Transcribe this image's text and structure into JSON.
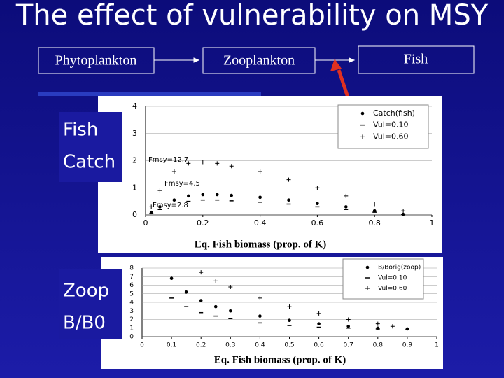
{
  "title": "The effect of vulnerability on MSY",
  "food_web": {
    "nodes": [
      "Phytoplankton",
      "Zooplankton",
      "Fish"
    ]
  },
  "side_labels": [
    [
      "Fish",
      "Catch"
    ],
    [
      "Zoop",
      "B/B0"
    ]
  ],
  "chart_data": [
    {
      "type": "scatter",
      "x_label": "Eq. Fish biomass (prop. of K)",
      "xlim": [
        0,
        1
      ],
      "ylim": [
        0,
        4
      ],
      "xticks": [
        0,
        0.2,
        0.4,
        0.6,
        0.8,
        1
      ],
      "yticks": [
        0,
        1,
        2,
        3,
        4
      ],
      "annotations": [
        "Fmsy=12.7",
        "Fmsy=4.5",
        "Fmsy=2.8"
      ],
      "series": [
        {
          "name": "Catch(fish)",
          "marker": "dot",
          "color": "#000000",
          "x": [
            0.02,
            0.05,
            0.1,
            0.15,
            0.2,
            0.25,
            0.3,
            0.4,
            0.5,
            0.6,
            0.7,
            0.8,
            0.9
          ],
          "values": [
            0.1,
            0.3,
            0.55,
            0.7,
            0.75,
            0.75,
            0.72,
            0.65,
            0.55,
            0.42,
            0.3,
            0.15,
            0.02
          ]
        },
        {
          "name": "Vul=0.10",
          "marker": "dash",
          "color": "#000000",
          "x": [
            0.02,
            0.05,
            0.1,
            0.15,
            0.2,
            0.25,
            0.3,
            0.4,
            0.5,
            0.6,
            0.7,
            0.8,
            0.9
          ],
          "values": [
            0.05,
            0.2,
            0.4,
            0.5,
            0.55,
            0.55,
            0.52,
            0.47,
            0.4,
            0.3,
            0.2,
            0.1,
            0.02
          ]
        },
        {
          "name": "Vul=0.60",
          "marker": "plus",
          "color": "#000000",
          "x": [
            0.02,
            0.05,
            0.1,
            0.15,
            0.2,
            0.25,
            0.3,
            0.4,
            0.5,
            0.6,
            0.7,
            0.8,
            0.9
          ],
          "values": [
            0.3,
            0.9,
            1.6,
            1.9,
            1.95,
            1.9,
            1.8,
            1.6,
            1.3,
            1.0,
            0.7,
            0.4,
            0.15
          ]
        }
      ]
    },
    {
      "type": "scatter",
      "x_label": "Eq. Fish biomass (prop. of K)",
      "xlim": [
        0,
        1
      ],
      "ylim": [
        0,
        8
      ],
      "xticks": [
        0,
        0.1,
        0.2,
        0.3,
        0.4,
        0.5,
        0.6,
        0.7,
        0.8,
        0.9,
        1
      ],
      "yticks": [
        0,
        1,
        2,
        3,
        4,
        5,
        6,
        7,
        8
      ],
      "series": [
        {
          "name": "B/Borig(zoop)",
          "marker": "dot",
          "color": "#000000",
          "x": [
            0.1,
            0.15,
            0.2,
            0.25,
            0.3,
            0.4,
            0.5,
            0.6,
            0.7,
            0.8,
            0.9
          ],
          "values": [
            6.8,
            5.2,
            4.2,
            3.5,
            3,
            2.4,
            1.9,
            1.5,
            1.2,
            1,
            0.9
          ]
        },
        {
          "name": "Vul=0.10",
          "marker": "dash",
          "color": "#000000",
          "x": [
            0.1,
            0.15,
            0.2,
            0.25,
            0.3,
            0.4,
            0.5,
            0.6,
            0.7,
            0.8,
            0.9
          ],
          "values": [
            4.5,
            3.5,
            2.8,
            2.4,
            2.1,
            1.6,
            1.3,
            1.1,
            1,
            0.9,
            0.8
          ]
        },
        {
          "name": "Vul=0.60",
          "marker": "plus",
          "color": "#000000",
          "x": [
            0.2,
            0.25,
            0.3,
            0.4,
            0.5,
            0.6,
            0.7,
            0.8,
            0.85
          ],
          "values": [
            7.5,
            6.5,
            5.8,
            4.5,
            3.5,
            2.7,
            2.0,
            1.5,
            1.2
          ]
        }
      ]
    }
  ]
}
